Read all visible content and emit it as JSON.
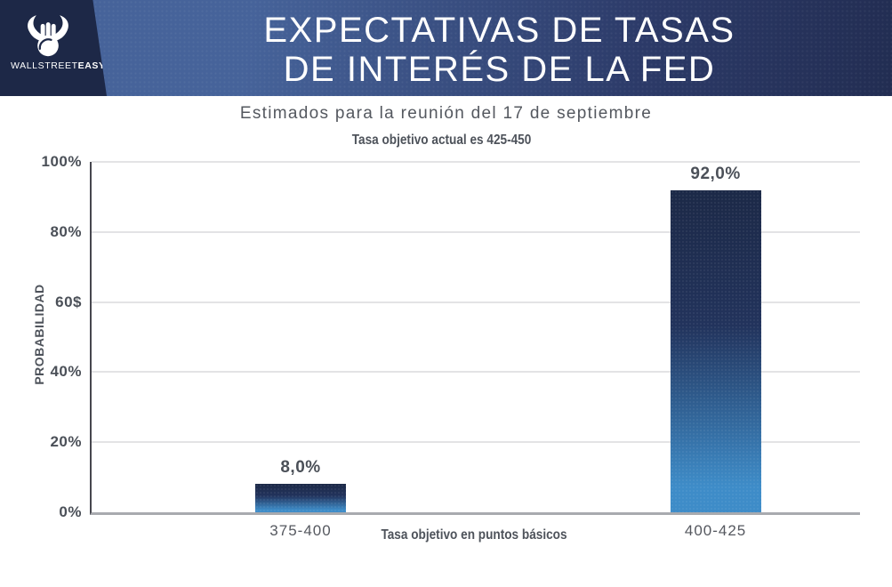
{
  "brand": {
    "logo_text_regular": "WALLSTREET",
    "logo_text_bold": "EASY"
  },
  "header": {
    "title_line1": "EXPECTATIVAS DE TASAS",
    "title_line2": "DE INTERÉS DE LA FED"
  },
  "subtitle": "Estimados para la reunión del 17 de septiembre",
  "chart_data": {
    "type": "bar",
    "title": "Tasa objetivo actual es 425-450",
    "categories": [
      "375-400",
      "400-425"
    ],
    "values": [
      8.0,
      92.0
    ],
    "value_labels": [
      "8,0%",
      "92,0%"
    ],
    "xlabel": "Tasa objetivo en puntos básicos",
    "ylabel": "PROBABILIDAD",
    "y_ticks": [
      "100%",
      "80%",
      "60$",
      "40%",
      "20%",
      "0%"
    ],
    "ylim": [
      0,
      100
    ],
    "grid": true,
    "legend": "none",
    "colors": {
      "bar_gradient_top": "#1c2947",
      "bar_gradient_bottom": "#3e8cc8",
      "gridline": "#e3e3e5",
      "baseline": "#a8aaaf",
      "y_axis_line": "#46464e",
      "text_gray": "#4b5058",
      "header_slate": "#46639a",
      "header_navy": "#222d52",
      "logo_panel_navy": "#1d2847"
    }
  }
}
